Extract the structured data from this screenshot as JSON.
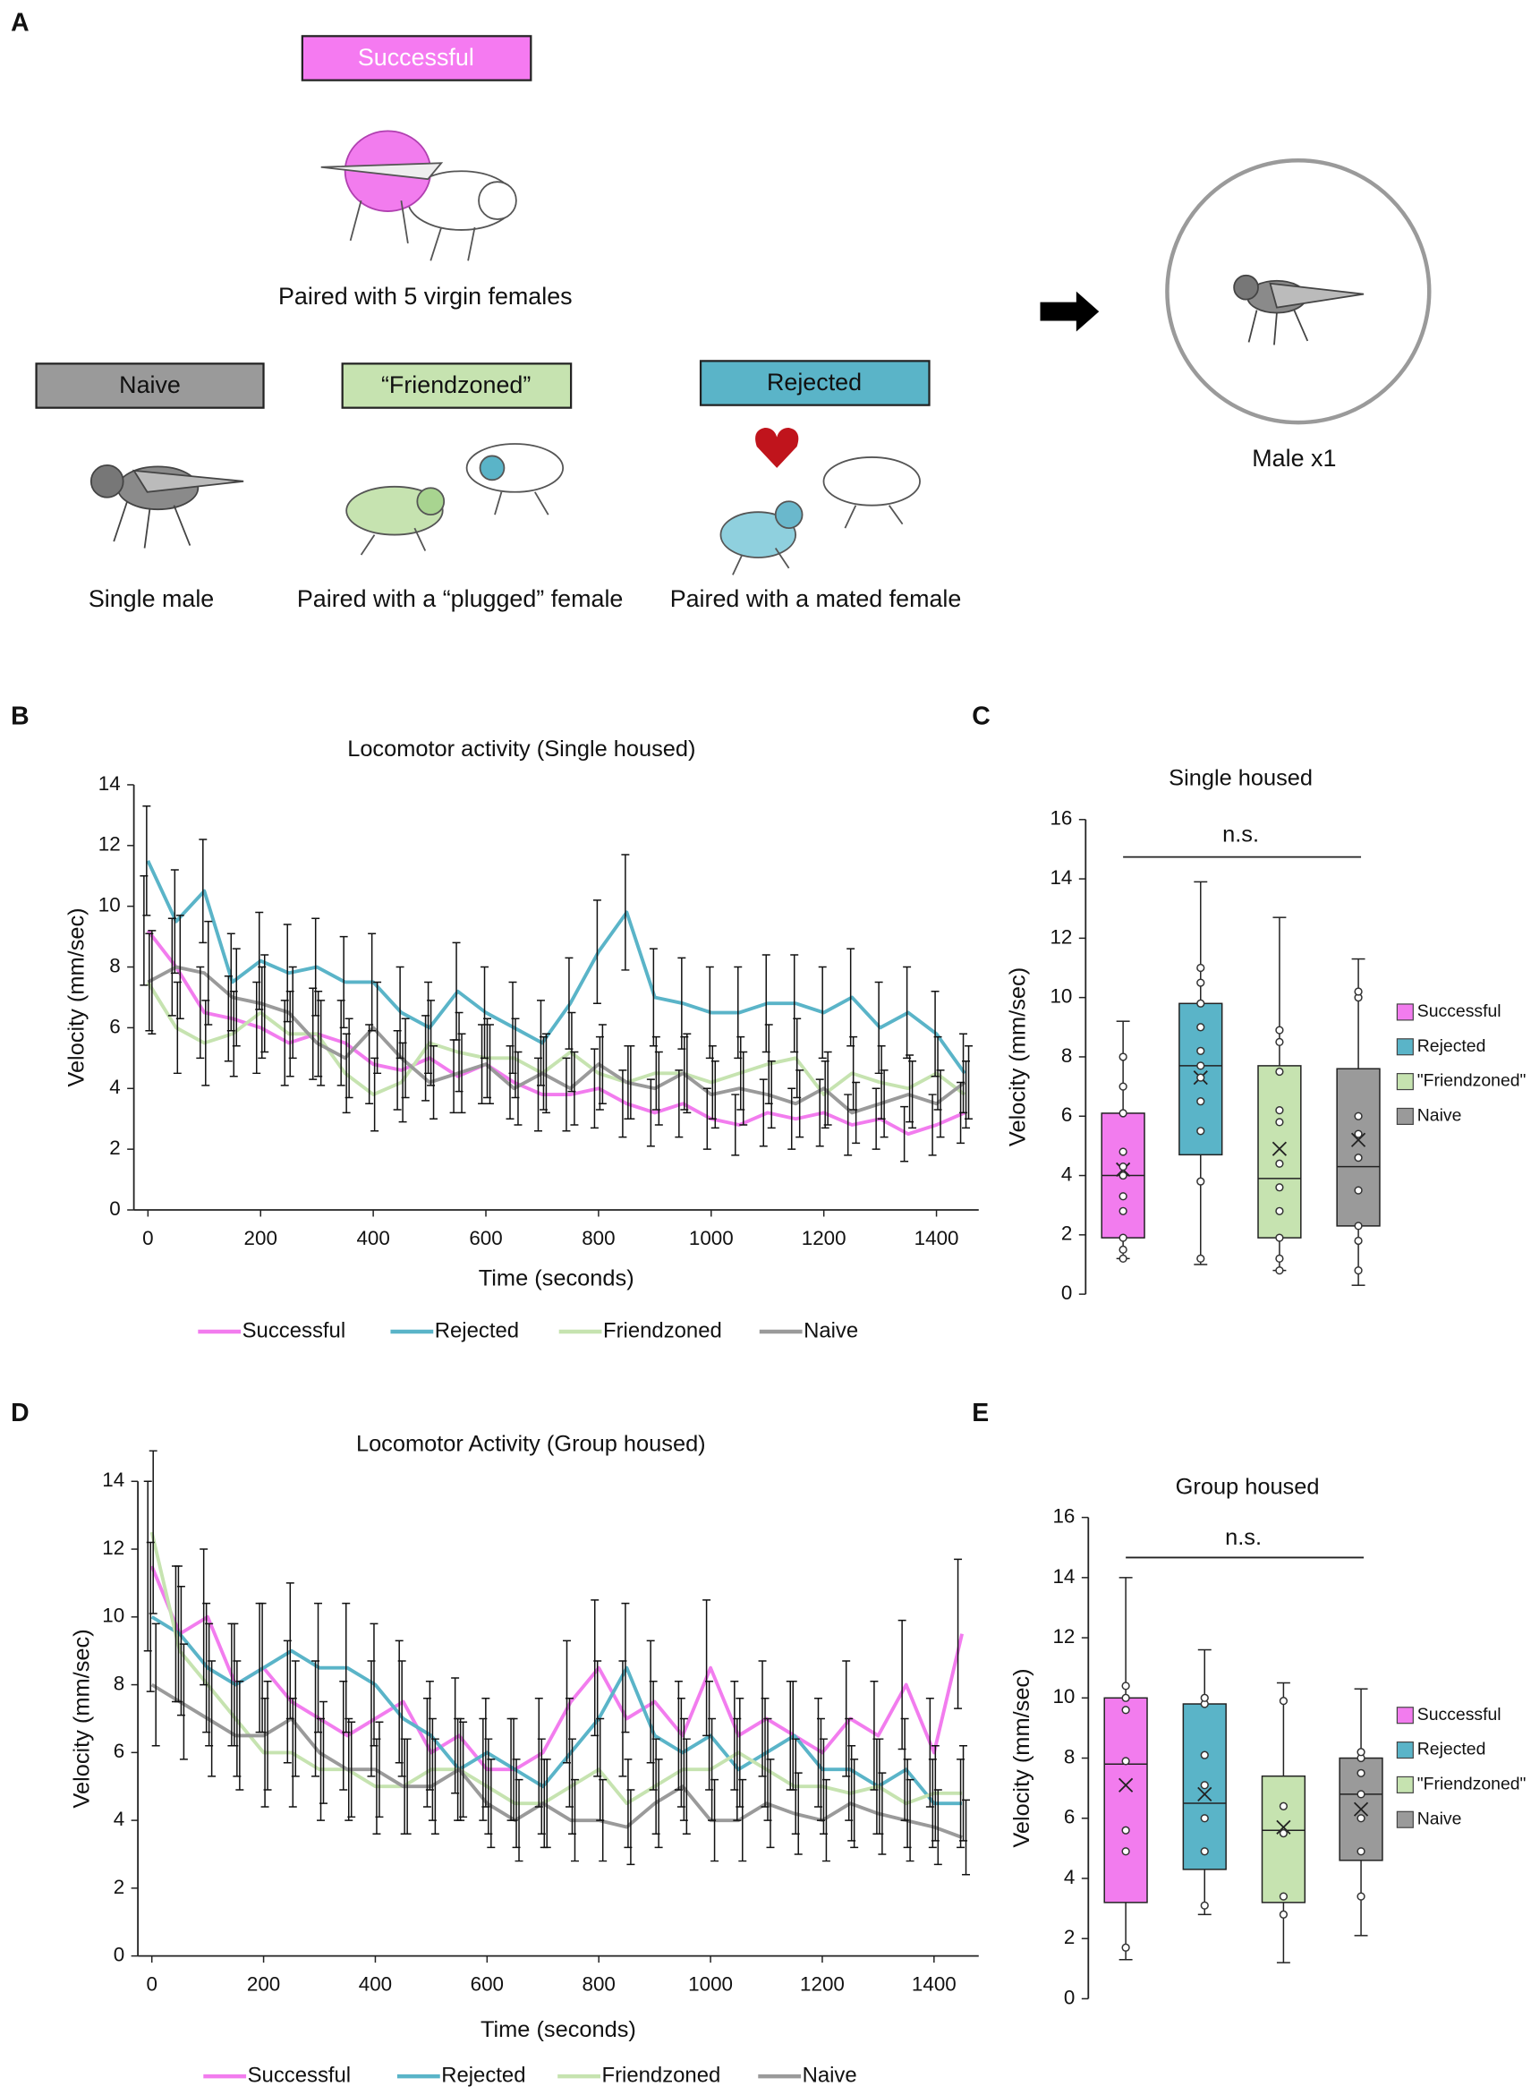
{
  "panel_labels": [
    "A",
    "B",
    "C",
    "D",
    "E"
  ],
  "diagram": {
    "groups": [
      {
        "label": "Successful",
        "caption": "Paired with 5 virgin females"
      },
      {
        "label": "Naive",
        "caption": "Single male"
      },
      {
        "label": "“Friendzoned”",
        "caption": "Paired with a “plugged” female"
      },
      {
        "label": "Rejected",
        "caption": "Paired with a mated female"
      }
    ],
    "result": "Male x1"
  },
  "chart_data": [
    {
      "type": "line",
      "title": "Locomotor activity (Single housed)",
      "xlabel": "Time (seconds)",
      "ylabel": "Velocity (mm/sec)",
      "x": [
        0,
        50,
        100,
        150,
        200,
        250,
        300,
        350,
        400,
        450,
        500,
        550,
        600,
        650,
        700,
        750,
        800,
        850,
        900,
        950,
        1000,
        1050,
        1100,
        1150,
        1200,
        1250,
        1300,
        1350,
        1400,
        1450
      ],
      "xlim": [
        -25,
        1475
      ],
      "xticks": [
        0,
        200,
        400,
        600,
        800,
        1000,
        1200,
        1400
      ],
      "ylim": [
        0,
        14
      ],
      "yticks": [
        0,
        2,
        4,
        6,
        8,
        10,
        12,
        14
      ],
      "series": [
        {
          "name": "Successful",
          "color": "#f27cee",
          "values": [
            9.2,
            8.0,
            6.5,
            6.3,
            6.0,
            5.5,
            5.8,
            5.5,
            4.8,
            4.6,
            5.0,
            4.4,
            4.8,
            4.2,
            3.8,
            3.8,
            4.0,
            3.5,
            3.2,
            3.5,
            3.0,
            2.8,
            3.2,
            3.0,
            3.2,
            2.8,
            3.0,
            2.5,
            2.8,
            3.2
          ],
          "errors": [
            1.8,
            1.6,
            1.5,
            1.4,
            1.5,
            1.4,
            1.5,
            1.4,
            1.3,
            1.3,
            1.4,
            1.2,
            1.3,
            1.2,
            1.2,
            1.2,
            1.3,
            1.1,
            1.1,
            1.1,
            1.0,
            1.0,
            1.1,
            1.0,
            1.1,
            1.0,
            1.0,
            0.9,
            1.0,
            1.0
          ]
        },
        {
          "name": "Rejected",
          "color": "#5ab4c8",
          "values": [
            11.5,
            9.5,
            10.5,
            7.5,
            8.2,
            7.8,
            8.0,
            7.5,
            7.5,
            6.5,
            6.0,
            7.2,
            6.5,
            6.0,
            5.5,
            6.8,
            8.5,
            9.8,
            7.0,
            6.8,
            6.5,
            6.5,
            6.8,
            6.8,
            6.5,
            7.0,
            6.0,
            6.5,
            5.8,
            4.5
          ],
          "errors": [
            1.8,
            1.7,
            1.7,
            1.6,
            1.6,
            1.6,
            1.6,
            1.5,
            1.6,
            1.5,
            1.5,
            1.6,
            1.5,
            1.5,
            1.4,
            1.5,
            1.7,
            1.9,
            1.6,
            1.5,
            1.5,
            1.5,
            1.6,
            1.6,
            1.5,
            1.6,
            1.5,
            1.5,
            1.4,
            1.3
          ]
        },
        {
          "name": "Friendzoned",
          "color": "#c6e3b0",
          "values": [
            7.5,
            6.0,
            5.5,
            5.8,
            6.5,
            5.8,
            5.8,
            4.5,
            3.8,
            4.2,
            5.5,
            5.2,
            5.0,
            5.0,
            4.5,
            5.2,
            4.5,
            4.2,
            4.5,
            4.5,
            4.2,
            4.5,
            4.8,
            5.0,
            3.8,
            4.5,
            4.2,
            4.0,
            4.5,
            3.8
          ],
          "errors": [
            1.6,
            1.5,
            1.4,
            1.4,
            1.5,
            1.4,
            1.4,
            1.3,
            1.2,
            1.3,
            1.4,
            1.3,
            1.3,
            1.3,
            1.2,
            1.3,
            1.2,
            1.2,
            1.2,
            1.2,
            1.2,
            1.2,
            1.3,
            1.3,
            1.1,
            1.2,
            1.2,
            1.1,
            1.2,
            1.1
          ]
        },
        {
          "name": "Naive",
          "color": "#9a9a9a",
          "values": [
            7.5,
            8.0,
            7.8,
            7.0,
            6.8,
            6.5,
            5.5,
            5.0,
            6.0,
            5.0,
            4.2,
            4.5,
            4.8,
            4.0,
            4.5,
            4.0,
            4.8,
            4.2,
            4.0,
            4.5,
            3.8,
            4.0,
            3.8,
            3.5,
            4.0,
            3.2,
            3.5,
            3.8,
            3.5,
            4.2
          ],
          "errors": [
            1.7,
            1.7,
            1.7,
            1.6,
            1.6,
            1.5,
            1.4,
            1.3,
            1.5,
            1.3,
            1.2,
            1.3,
            1.3,
            1.2,
            1.3,
            1.2,
            1.3,
            1.2,
            1.2,
            1.3,
            1.1,
            1.2,
            1.1,
            1.1,
            1.2,
            1.0,
            1.1,
            1.1,
            1.1,
            1.2
          ]
        }
      ]
    },
    {
      "type": "box",
      "title": "Single housed",
      "ylabel": "Velocity (mm/sec)",
      "annotation": "n.s.",
      "ylim": [
        0,
        16
      ],
      "yticks": [
        0,
        2,
        4,
        6,
        8,
        10,
        12,
        14,
        16
      ],
      "series": [
        {
          "name": "Successful",
          "color": "#f27cee",
          "min": 1.2,
          "q1": 1.9,
          "median": 4.0,
          "q3": 6.1,
          "max": 9.2,
          "mean": 4.2,
          "points": [
            1.2,
            1.5,
            1.9,
            2.8,
            3.3,
            4.0,
            4.3,
            4.8,
            6.1,
            7.0,
            8.0
          ]
        },
        {
          "name": "Rejected",
          "color": "#5ab4c8",
          "min": 1.0,
          "q1": 4.7,
          "median": 7.7,
          "q3": 9.8,
          "max": 13.9,
          "mean": 7.3,
          "points": [
            1.2,
            3.8,
            5.5,
            6.5,
            7.3,
            7.7,
            8.2,
            9.0,
            9.8,
            10.5,
            11.0
          ]
        },
        {
          "name": "\"Friendzoned\"",
          "color": "#c6e3b0",
          "min": 0.8,
          "q1": 1.9,
          "median": 3.9,
          "q3": 7.7,
          "max": 12.7,
          "mean": 4.9,
          "points": [
            0.8,
            1.2,
            1.9,
            2.8,
            3.6,
            4.4,
            5.8,
            6.2,
            7.5,
            8.5,
            8.9
          ]
        },
        {
          "name": "Naive",
          "color": "#9a9a9a",
          "min": 0.3,
          "q1": 2.3,
          "median": 4.3,
          "q3": 7.6,
          "max": 11.3,
          "mean": 5.2,
          "points": [
            0.8,
            1.8,
            2.3,
            3.5,
            4.6,
            5.4,
            6.0,
            10.0,
            10.2
          ]
        }
      ]
    },
    {
      "type": "line",
      "title": "Locomotor Activity (Group housed)",
      "xlabel": "Time (seconds)",
      "ylabel": "Velocity (mm/sec)",
      "x": [
        0,
        50,
        100,
        150,
        200,
        250,
        300,
        350,
        400,
        450,
        500,
        550,
        600,
        650,
        700,
        750,
        800,
        850,
        900,
        950,
        1000,
        1050,
        1100,
        1150,
        1200,
        1250,
        1300,
        1350,
        1400,
        1450
      ],
      "xlim": [
        -25,
        1480
      ],
      "xticks": [
        0,
        200,
        400,
        600,
        800,
        1000,
        1200,
        1400
      ],
      "ylim": [
        0,
        14
      ],
      "yticks": [
        0,
        2,
        4,
        6,
        8,
        10,
        12,
        14
      ],
      "series": [
        {
          "name": "Successful",
          "color": "#f27cee",
          "values": [
            11.5,
            9.5,
            10.0,
            8.0,
            8.5,
            7.5,
            7.0,
            6.5,
            7.0,
            7.5,
            6.0,
            6.5,
            5.5,
            5.5,
            6.0,
            7.5,
            8.5,
            7.0,
            7.5,
            6.5,
            8.5,
            6.5,
            7.0,
            6.5,
            6.0,
            7.0,
            6.5,
            8.0,
            6.0,
            9.5
          ],
          "errors": [
            2.5,
            2.0,
            2.0,
            1.8,
            1.9,
            1.8,
            1.7,
            1.6,
            1.7,
            1.8,
            1.6,
            1.7,
            1.5,
            1.5,
            1.6,
            1.8,
            2.0,
            1.7,
            1.8,
            1.6,
            2.0,
            1.6,
            1.7,
            1.6,
            1.6,
            1.7,
            1.6,
            1.9,
            1.6,
            2.2
          ]
        },
        {
          "name": "Rejected",
          "color": "#5ab4c8",
          "values": [
            10.0,
            9.5,
            8.5,
            8.0,
            8.5,
            9.0,
            8.5,
            8.5,
            8.0,
            7.0,
            6.5,
            5.5,
            6.0,
            5.5,
            5.0,
            6.0,
            7.0,
            8.5,
            6.5,
            6.0,
            6.5,
            5.5,
            6.0,
            6.5,
            5.5,
            5.5,
            5.0,
            5.5,
            4.5,
            4.5
          ],
          "errors": [
            2.2,
            2.0,
            1.9,
            1.8,
            1.9,
            2.0,
            1.9,
            1.9,
            1.8,
            1.7,
            1.6,
            1.5,
            1.6,
            1.5,
            1.4,
            1.6,
            1.7,
            1.9,
            1.6,
            1.6,
            1.6,
            1.5,
            1.6,
            1.6,
            1.5,
            1.5,
            1.4,
            1.5,
            1.3,
            1.3
          ]
        },
        {
          "name": "Friendzoned",
          "color": "#c6e3b0",
          "values": [
            12.5,
            9.0,
            8.0,
            7.0,
            6.0,
            6.0,
            5.5,
            5.5,
            5.0,
            5.0,
            5.5,
            5.5,
            5.0,
            4.5,
            4.5,
            5.0,
            5.5,
            4.5,
            5.0,
            5.5,
            5.5,
            6.0,
            5.5,
            5.0,
            5.0,
            4.8,
            5.0,
            4.5,
            4.8,
            4.8
          ],
          "errors": [
            2.4,
            1.9,
            1.8,
            1.7,
            1.6,
            1.6,
            1.5,
            1.5,
            1.4,
            1.4,
            1.5,
            1.5,
            1.4,
            1.3,
            1.3,
            1.4,
            1.5,
            1.3,
            1.4,
            1.5,
            1.5,
            1.6,
            1.5,
            1.4,
            1.4,
            1.4,
            1.4,
            1.3,
            1.4,
            1.4
          ]
        },
        {
          "name": "Naive",
          "color": "#9a9a9a",
          "values": [
            8.0,
            7.5,
            7.0,
            6.5,
            6.5,
            7.0,
            6.0,
            5.5,
            5.5,
            5.0,
            5.0,
            5.5,
            4.5,
            4.0,
            4.5,
            4.0,
            4.0,
            3.8,
            4.5,
            5.0,
            4.0,
            4.0,
            4.5,
            4.2,
            4.0,
            4.5,
            4.2,
            4.0,
            3.8,
            3.5
          ],
          "errors": [
            1.8,
            1.7,
            1.7,
            1.6,
            1.6,
            1.7,
            1.5,
            1.4,
            1.4,
            1.4,
            1.4,
            1.4,
            1.3,
            1.2,
            1.3,
            1.2,
            1.2,
            1.1,
            1.3,
            1.4,
            1.2,
            1.2,
            1.3,
            1.2,
            1.2,
            1.3,
            1.2,
            1.2,
            1.1,
            1.1
          ]
        }
      ]
    },
    {
      "type": "box",
      "title": "Group housed",
      "ylabel": "Velocity (mm/sec)",
      "annotation": "n.s.",
      "ylim": [
        0,
        16
      ],
      "yticks": [
        0,
        2,
        4,
        6,
        8,
        10,
        12,
        14,
        16
      ],
      "series": [
        {
          "name": "Successful",
          "color": "#f27cee",
          "min": 1.3,
          "q1": 3.2,
          "median": 7.8,
          "q3": 10.0,
          "max": 14.0,
          "mean": 7.1,
          "points": [
            1.7,
            4.9,
            5.6,
            7.9,
            9.6,
            10.0,
            10.4
          ]
        },
        {
          "name": "Rejected",
          "color": "#5ab4c8",
          "min": 2.8,
          "q1": 4.3,
          "median": 6.5,
          "q3": 9.8,
          "max": 11.6,
          "mean": 6.8,
          "points": [
            3.1,
            4.9,
            6.0,
            7.1,
            8.1,
            9.8,
            10.0
          ]
        },
        {
          "name": "\"Friendzoned\"",
          "color": "#c6e3b0",
          "min": 1.2,
          "q1": 3.2,
          "median": 5.6,
          "q3": 7.4,
          "max": 10.5,
          "mean": 5.7,
          "points": [
            2.8,
            3.4,
            5.5,
            6.4,
            9.9
          ]
        },
        {
          "name": "Naive",
          "color": "#9a9a9a",
          "min": 2.1,
          "q1": 4.6,
          "median": 6.8,
          "q3": 8.0,
          "max": 10.3,
          "mean": 6.3,
          "points": [
            3.4,
            4.9,
            6.0,
            6.8,
            7.5,
            8.0,
            8.2
          ]
        }
      ]
    }
  ]
}
